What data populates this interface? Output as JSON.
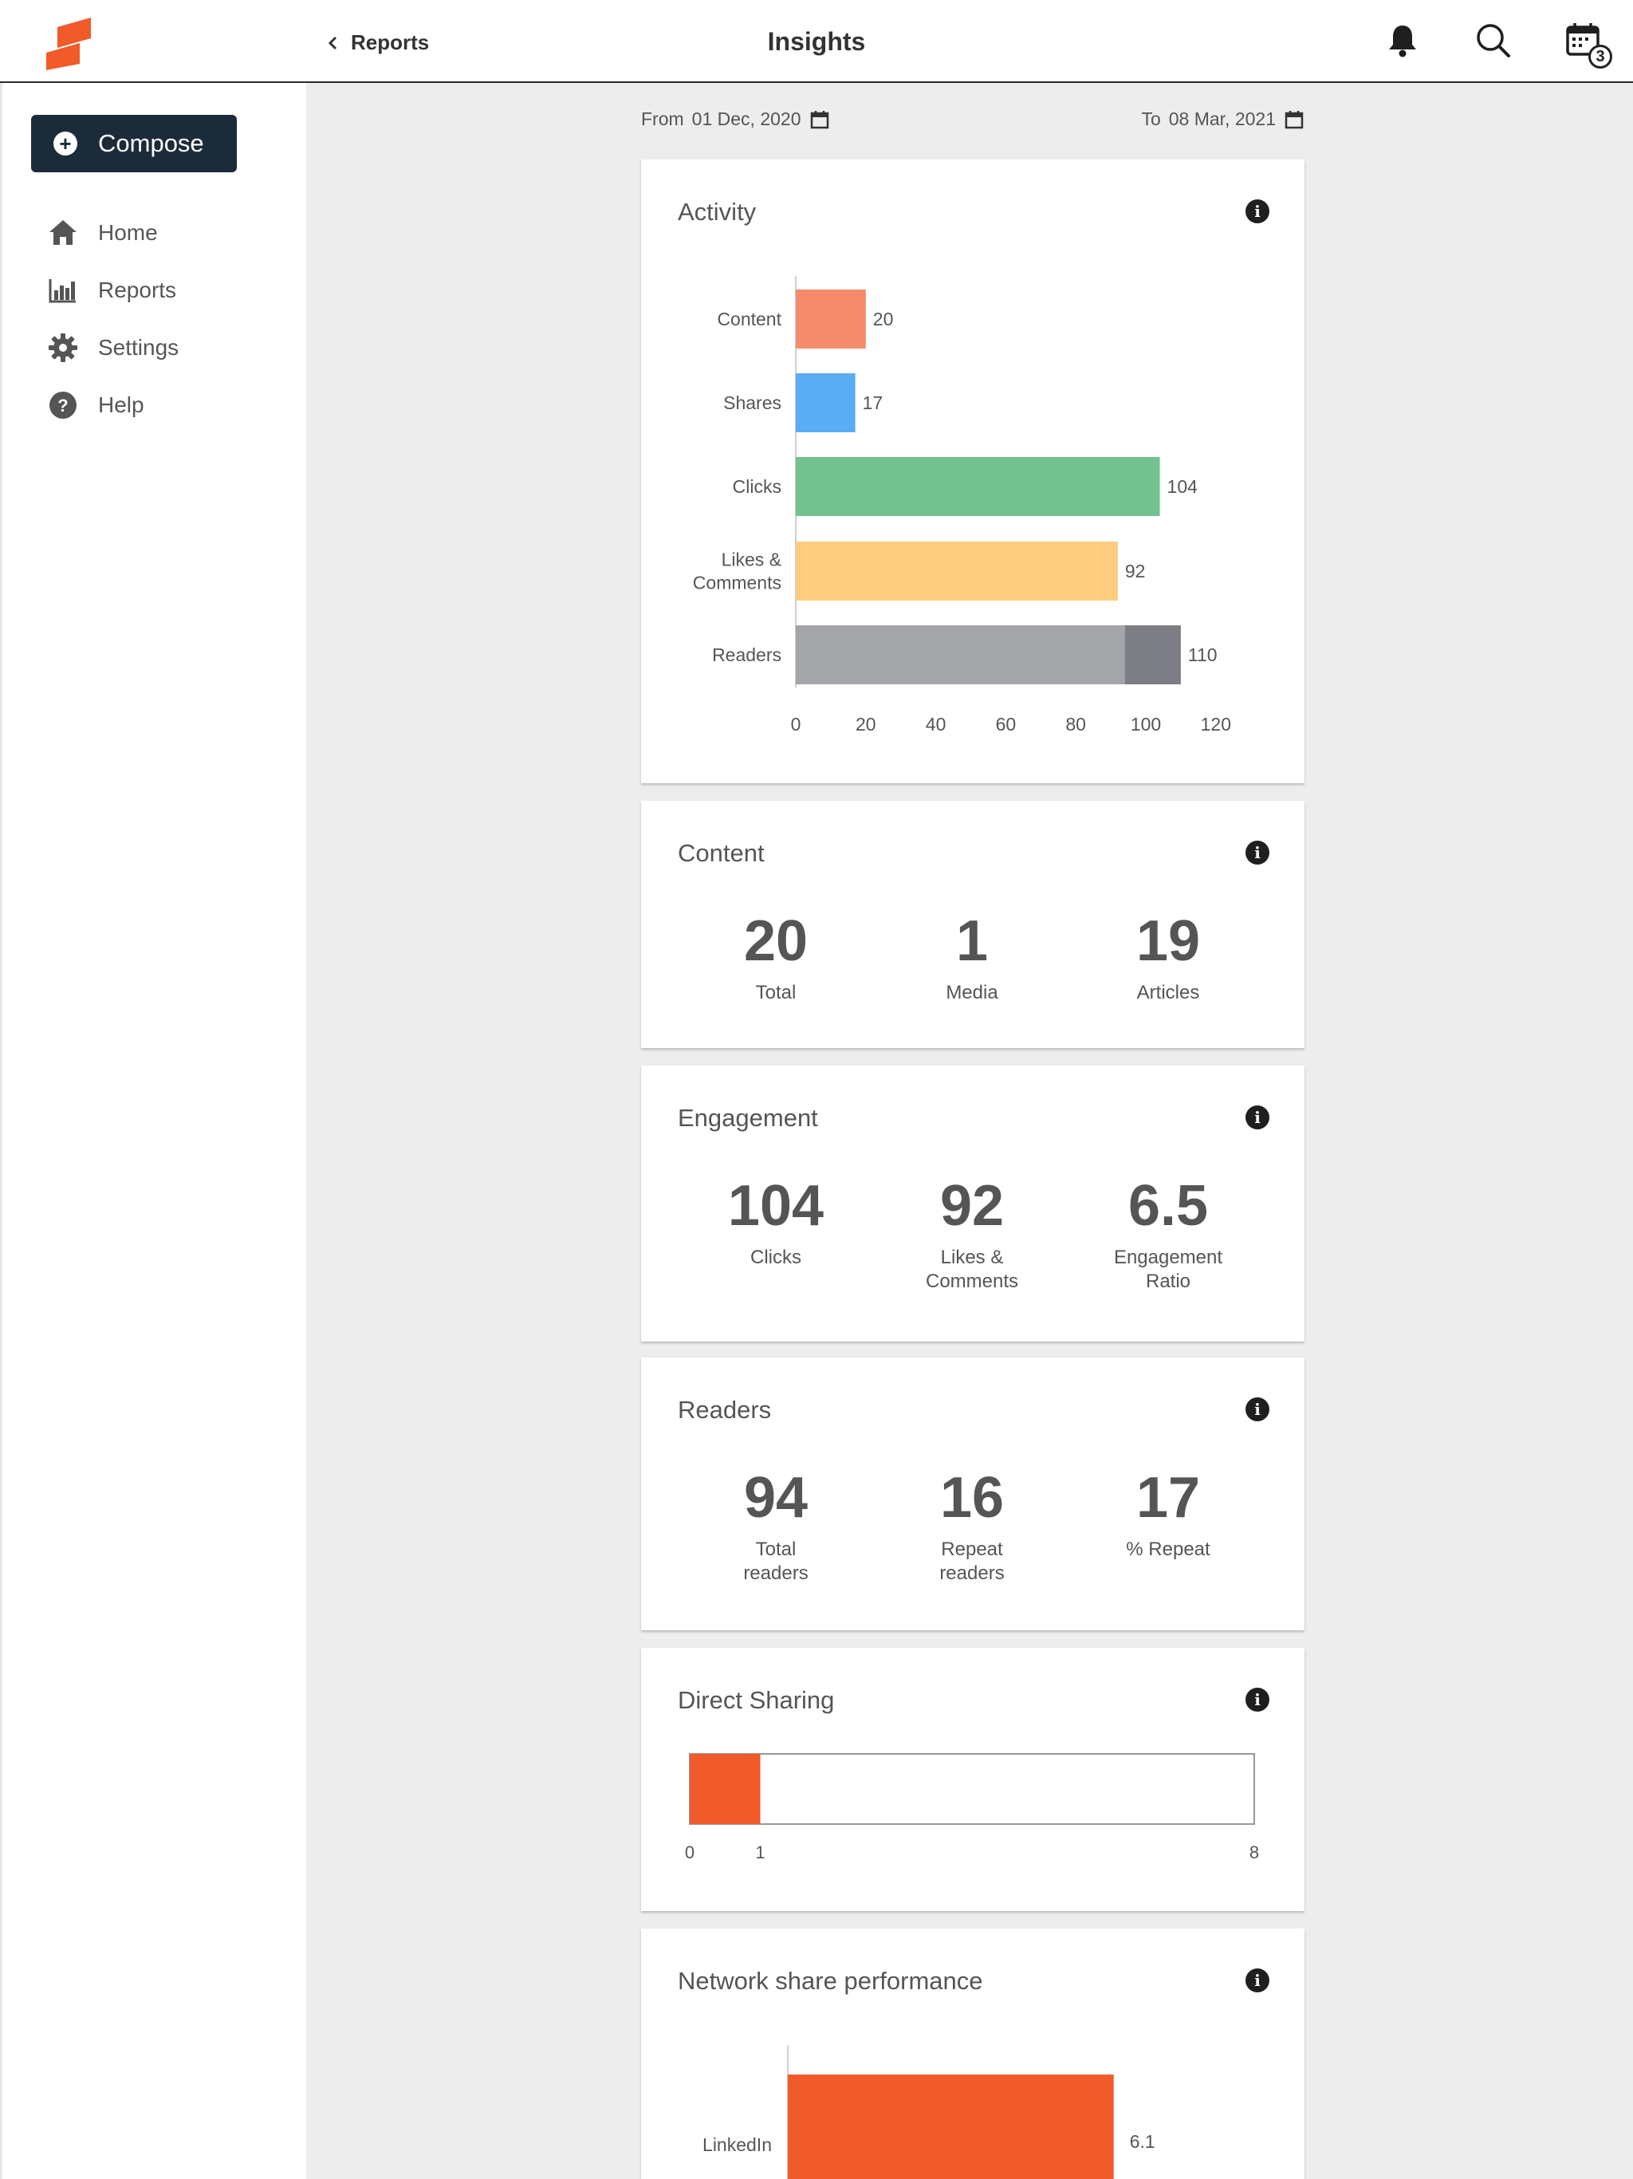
{
  "colors": {
    "brand": "#f15a29",
    "dark": "#1c2b39"
  },
  "header": {
    "back_label": "Reports",
    "title": "Insights",
    "calendar_badge": "3"
  },
  "sidebar": {
    "compose_label": "Compose",
    "items": [
      {
        "label": "Home",
        "icon": "home-icon"
      },
      {
        "label": "Reports",
        "icon": "bar-chart-icon"
      },
      {
        "label": "Settings",
        "icon": "gear-icon"
      },
      {
        "label": "Help",
        "icon": "help-icon"
      }
    ]
  },
  "dates": {
    "from_label": "From",
    "from_value": "01 Dec, 2020",
    "to_label": "To",
    "to_value": "08 Mar, 2021"
  },
  "cards": {
    "activity": {
      "title": "Activity"
    },
    "content": {
      "title": "Content",
      "stats": [
        {
          "value": "20",
          "label": "Total"
        },
        {
          "value": "1",
          "label": "Media"
        },
        {
          "value": "19",
          "label": "Articles"
        }
      ]
    },
    "engagement": {
      "title": "Engagement",
      "stats": [
        {
          "value": "104",
          "label": "Clicks"
        },
        {
          "value": "92",
          "label": "Likes &\nComments"
        },
        {
          "value": "6.5",
          "label": "Engagement\nRatio"
        }
      ]
    },
    "readers": {
      "title": "Readers",
      "stats": [
        {
          "value": "94",
          "label": "Total\nreaders"
        },
        {
          "value": "16",
          "label": "Repeat\nreaders"
        },
        {
          "value": "17",
          "label": "% Repeat"
        }
      ]
    },
    "direct_sharing": {
      "title": "Direct Sharing"
    },
    "network": {
      "title": "Network share performance"
    }
  },
  "chart_data": [
    {
      "type": "bar",
      "orientation": "horizontal",
      "title": "Activity",
      "categories": [
        "Content",
        "Shares",
        "Clicks",
        "Likes & Comments",
        "Readers"
      ],
      "category_labels": [
        [
          "Content"
        ],
        [
          "Shares"
        ],
        [
          "Clicks"
        ],
        [
          "Likes &",
          "Comments"
        ],
        [
          "Readers"
        ]
      ],
      "values": [
        20,
        17,
        104,
        92,
        110
      ],
      "readers_split": [
        94,
        16
      ],
      "colors": [
        "#f58b6c",
        "#5aacf5",
        "#72c18e",
        "#fdcc7e",
        "#a4a5a9"
      ],
      "readers_repeat_color": "#7d7d86",
      "xlim": [
        0,
        120
      ],
      "xticks": [
        0,
        20,
        40,
        60,
        80,
        100,
        120
      ]
    },
    {
      "type": "bar",
      "orientation": "horizontal",
      "title": "Direct Sharing",
      "value": 1,
      "xlim": [
        0,
        8
      ],
      "ticks": [
        "0",
        "1",
        "8"
      ],
      "color": "#f15a29"
    },
    {
      "type": "bar",
      "orientation": "horizontal",
      "title": "Network share performance",
      "categories": [
        "LinkedIn"
      ],
      "values": [
        6.1
      ],
      "color": "#f15a29"
    }
  ]
}
